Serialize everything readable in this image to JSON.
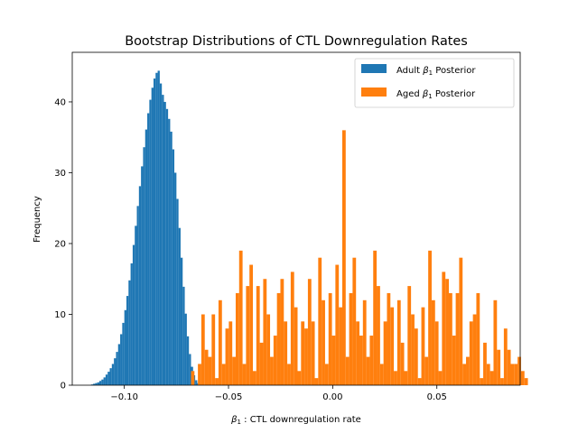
{
  "chart_data": {
    "type": "histogram",
    "title": "Bootstrap Distributions of CTL Downregulation Rates",
    "xlabel_math": "β",
    "xlabel_sub": "1",
    "xlabel_rest": " : CTL downregulation rate",
    "ylabel": "Frequency",
    "xlim": [
      -0.125,
      0.09
    ],
    "ylim": [
      0,
      47
    ],
    "x_ticks": [
      {
        "value": -0.1,
        "label": "−0.10"
      },
      {
        "value": -0.05,
        "label": "−0.05"
      },
      {
        "value": 0.0,
        "label": "0.00"
      },
      {
        "value": 0.05,
        "label": "0.05"
      }
    ],
    "y_ticks": [
      {
        "value": 0,
        "label": "0"
      },
      {
        "value": 10,
        "label": "10"
      },
      {
        "value": 20,
        "label": "20"
      },
      {
        "value": 30,
        "label": "30"
      },
      {
        "value": 40,
        "label": "40"
      }
    ],
    "legend_placement": "upper right",
    "series": [
      {
        "name_prefix": "Adult ",
        "name_math": "β",
        "name_sub": "1",
        "name_suffix": " Posterior",
        "color": "#1f77b4",
        "bin_start": -0.116,
        "bin_width": 0.001,
        "counts": [
          0.1,
          0.2,
          0.3,
          0.4,
          0.6,
          0.8,
          1.1,
          1.5,
          1.9,
          2.4,
          3.0,
          3.8,
          4.7,
          5.8,
          7.2,
          8.8,
          10.6,
          12.6,
          14.8,
          17.2,
          19.8,
          22.5,
          25.3,
          28.1,
          30.9,
          33.6,
          36.1,
          38.4,
          40.3,
          42.0,
          43.3,
          44.1,
          44.4,
          42.6,
          41.0,
          40.0,
          39.0,
          37.6,
          35.8,
          33.3,
          30.0,
          26.3,
          22.2,
          18.0,
          13.9,
          10.1,
          6.9,
          4.4,
          2.6,
          1.4,
          0.7,
          0.3,
          0.1
        ]
      },
      {
        "name_prefix": "Aged ",
        "name_math": "β",
        "name_sub": "1",
        "name_suffix": " Posterior",
        "color": "#ff7f0e",
        "bin_start": -0.068,
        "bin_width": 0.00165,
        "counts": [
          2,
          0,
          3,
          10,
          5,
          4,
          10,
          1,
          12,
          3,
          8,
          9,
          4,
          13,
          19,
          3,
          14,
          17,
          2,
          14,
          6,
          15,
          10,
          4,
          7,
          13,
          15,
          9,
          3,
          16,
          11,
          2,
          9,
          8,
          15,
          9,
          1,
          18,
          12,
          3,
          13,
          7,
          17,
          11,
          36,
          4,
          13,
          18,
          9,
          7,
          12,
          4,
          7,
          19,
          14,
          3,
          9,
          13,
          11,
          2,
          12,
          6,
          2,
          14,
          10,
          8,
          1,
          11,
          4,
          19,
          12,
          9,
          2,
          16,
          15,
          13,
          7,
          13,
          18,
          3,
          4,
          9,
          10,
          13,
          1,
          6,
          3,
          2,
          12,
          5,
          1,
          8,
          5,
          3,
          3,
          4,
          2,
          1
        ]
      }
    ]
  }
}
